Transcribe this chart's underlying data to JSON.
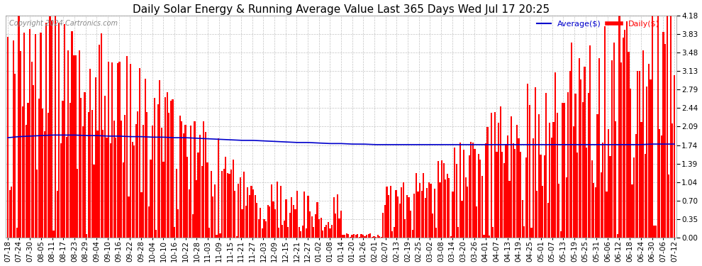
{
  "title": "Daily Solar Energy & Running Average Value Last 365 Days Wed Jul 17 20:25",
  "copyright": "Copyright 2024 Cartronics.com",
  "legend_avg": "Average($)",
  "legend_daily": "Daily($)",
  "bar_color": "#ff0000",
  "avg_color": "#0000cc",
  "background_color": "#ffffff",
  "plot_bg_color": "#ffffff",
  "yticks": [
    0.0,
    0.35,
    0.7,
    1.04,
    1.39,
    1.74,
    2.09,
    2.44,
    2.79,
    3.13,
    3.48,
    3.83,
    4.18
  ],
  "ylim": [
    0.0,
    4.18
  ],
  "title_fontsize": 11,
  "tick_fontsize": 7.5,
  "copyright_fontsize": 7,
  "legend_fontsize": 8,
  "x_labels": [
    "07-18",
    "07-24",
    "07-30",
    "08-05",
    "08-11",
    "08-17",
    "08-23",
    "08-29",
    "09-04",
    "09-10",
    "09-16",
    "09-22",
    "09-28",
    "10-04",
    "10-10",
    "10-16",
    "10-22",
    "10-28",
    "11-03",
    "11-09",
    "11-15",
    "11-21",
    "11-27",
    "12-03",
    "12-09",
    "12-15",
    "12-21",
    "12-27",
    "01-02",
    "01-08",
    "01-14",
    "01-20",
    "01-26",
    "02-01",
    "02-07",
    "02-13",
    "02-19",
    "02-25",
    "03-02",
    "03-08",
    "03-14",
    "03-20",
    "03-26",
    "04-01",
    "04-07",
    "04-13",
    "04-19",
    "04-25",
    "05-01",
    "05-07",
    "05-13",
    "05-19",
    "05-25",
    "05-31",
    "06-06",
    "06-12",
    "06-18",
    "06-24",
    "06-30",
    "07-06",
    "07-12"
  ],
  "avg_values": [
    1.88,
    1.9,
    1.91,
    1.92,
    1.93,
    1.93,
    1.93,
    1.92,
    1.92,
    1.91,
    1.91,
    1.9,
    1.9,
    1.89,
    1.89,
    1.88,
    1.88,
    1.87,
    1.86,
    1.85,
    1.84,
    1.83,
    1.83,
    1.82,
    1.81,
    1.8,
    1.79,
    1.79,
    1.78,
    1.77,
    1.77,
    1.76,
    1.76,
    1.75,
    1.75,
    1.75,
    1.75,
    1.75,
    1.75,
    1.75,
    1.75,
    1.75,
    1.75,
    1.75,
    1.75,
    1.75,
    1.75,
    1.75,
    1.75,
    1.75,
    1.75,
    1.75,
    1.75,
    1.75,
    1.75,
    1.75,
    1.75,
    1.75,
    1.76,
    1.76,
    1.76
  ]
}
